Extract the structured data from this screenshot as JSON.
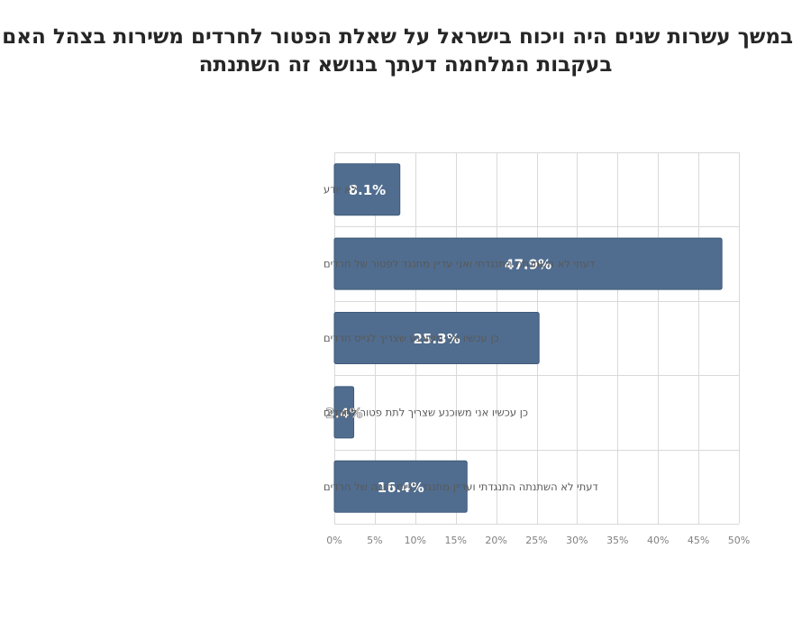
{
  "title_lines": [
    "במשך עשרות שנים היה ויכוח בישראל על שאלת הפטור לחרדים משירות בצהל האם",
    "בעקבות המלחמה דעתך בנושא זה השתנתה"
  ],
  "colors": {
    "bar_fill": "#506d8f",
    "bar_stroke": "#3f5a7a",
    "grid": "#d9d9d9",
    "category_text": "#595959",
    "tick_text": "#808080",
    "label_text": "#ffffff"
  },
  "chart_data": {
    "type": "bar",
    "orientation": "horizontal",
    "title": "במשך עשרות שנים היה ויכוח בישראל על שאלת הפטור לחרדים משירות בצהל האם בעקבות המלחמה דעתך בנושא זה השתנתה",
    "categories": [
      "לא יודע",
      "דעתי לא השתנתה  התנגדתי ואני עדיין מתנגד לפטור של חרדים",
      "כן  עכשיו אני משוכנע שצריך לגייס חרדים",
      "כן  עכשיו אני משוכנע שצריך לתת פטור לחרדים",
      "דעתי לא השתנתה  התנגדתי ועדיין מתנגד לגיוס חובה של חרדים"
    ],
    "values": [
      8.1,
      47.9,
      25.3,
      2.4,
      16.4
    ],
    "data_labels": [
      "8.1%",
      "47.9%",
      "25.3%",
      "2.4%",
      "16.4%"
    ],
    "xlim": [
      0,
      50
    ],
    "x_ticks": [
      "0%",
      "5%",
      "10%",
      "15%",
      "20%",
      "25%",
      "30%",
      "35%",
      "40%",
      "45%",
      "50%"
    ],
    "xlabel": "",
    "ylabel": "",
    "grid": true,
    "legend": "none"
  }
}
